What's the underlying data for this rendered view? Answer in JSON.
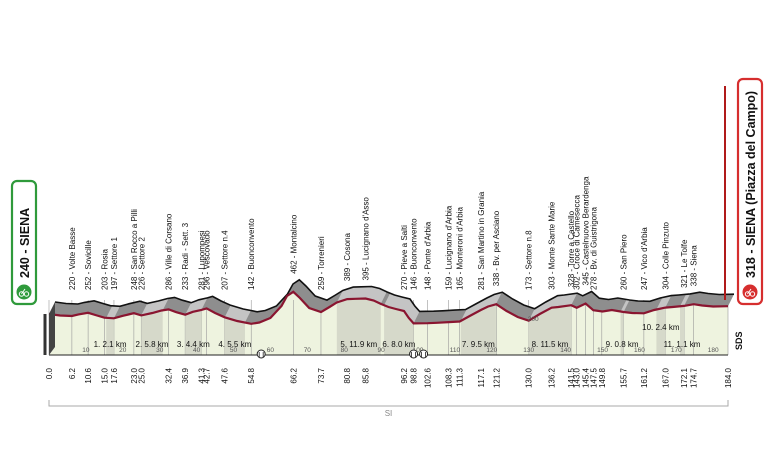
{
  "chart_data": {
    "type": "area",
    "start": {
      "label": "240 - SIENA",
      "elevation_m": 240
    },
    "finish": {
      "label": "318 - SIENA (Piazza del Campo)",
      "elevation_m": 318
    },
    "xlim": [
      0,
      184
    ],
    "x_ticks": [
      10,
      20,
      30,
      40,
      50,
      60,
      70,
      80,
      90,
      100,
      110,
      120,
      130,
      140,
      150,
      160,
      170,
      180
    ],
    "elevation_ref_labels": [
      "200"
    ],
    "distance_labels": [
      "0.0",
      "6.2",
      "10.6",
      "15.0",
      "17.6",
      "23.0",
      "25.0",
      "32.4",
      "36.9",
      "41.3",
      "42.7",
      "47.6",
      "54.8",
      "66.2",
      "73.7",
      "80.8",
      "85.8",
      "96.2",
      "98.8",
      "102.6",
      "108.3",
      "111.3",
      "117.1",
      "121.2",
      "130.0",
      "136.2",
      "141.5",
      "143.0",
      "145.4",
      "147.5",
      "149.8",
      "155.7",
      "161.2",
      "167.0",
      "172.1",
      "174.7",
      "184.0"
    ],
    "waypoints": [
      {
        "km": 6.2,
        "label": "220 - Volte Basse"
      },
      {
        "km": 10.6,
        "label": "252 - Sovicille"
      },
      {
        "km": 15.0,
        "label": "203 - Rosia"
      },
      {
        "km": 17.6,
        "label": "197 - Settore 1"
      },
      {
        "km": 23.0,
        "label": "248 - San Rocco a Pilli"
      },
      {
        "km": 25.0,
        "label": "226 - Settore 2"
      },
      {
        "km": 32.4,
        "label": "286 - Ville di Corsano"
      },
      {
        "km": 36.9,
        "label": "233 - Radi - Sett. 3"
      },
      {
        "km": 41.3,
        "label": "281 - Lupompesi"
      },
      {
        "km": 42.7,
        "label": "296 - Vescovado"
      },
      {
        "km": 47.6,
        "label": "207 - Settore n.4"
      },
      {
        "km": 54.8,
        "label": "142 - Buonconvento"
      },
      {
        "km": 66.2,
        "label": "462 - Montalcino"
      },
      {
        "km": 73.7,
        "label": "259 - Torrenieri"
      },
      {
        "km": 80.8,
        "label": "389 - Cosona"
      },
      {
        "km": 85.8,
        "label": "395 - Lucignano d'Asso"
      },
      {
        "km": 96.2,
        "label": "270 - Pieve a Salti"
      },
      {
        "km": 98.8,
        "label": "146 - Buonconvento"
      },
      {
        "km": 102.6,
        "label": "148 - Ponte d'Arbia"
      },
      {
        "km": 108.3,
        "label": "159 - Lucignano d'Arbia"
      },
      {
        "km": 111.3,
        "label": "165 - Monteroni d'Arbia"
      },
      {
        "km": 117.1,
        "label": "281 - San Martino in Grania"
      },
      {
        "km": 121.2,
        "label": "338 - Bv. per Asciano"
      },
      {
        "km": 130.0,
        "label": "173 - Settore n.8"
      },
      {
        "km": 136.2,
        "label": "303 - Monte Sante Marie"
      },
      {
        "km": 141.5,
        "label": "328 - Torre a Castello"
      },
      {
        "km": 143.0,
        "label": "302 - Croce di Camesecca"
      },
      {
        "km": 145.4,
        "label": "345 - Castelnuovo Berardenga"
      },
      {
        "km": 147.5,
        "label": "278 - Bv. di Guistrigona"
      },
      {
        "km": 155.7,
        "label": "260 - San Piero"
      },
      {
        "km": 161.2,
        "label": "247 - Vico d'Arbia"
      },
      {
        "km": 167.0,
        "label": "304 - Colle Pinzuto"
      },
      {
        "km": 172.1,
        "label": "321 - Le Tolfe"
      },
      {
        "km": 174.7,
        "label": "338 - Siena"
      }
    ],
    "sectors": [
      {
        "label": "1. 2.1 km",
        "from": 15.5,
        "to": 17.6
      },
      {
        "label": "2. 5.8 km",
        "from": 25.0,
        "to": 30.8
      },
      {
        "label": "3. 4.4 km",
        "from": 36.9,
        "to": 41.3
      },
      {
        "label": "4. 5.5 km",
        "from": 47.6,
        "to": 53.1
      },
      {
        "label": "5. 11.9 km",
        "from": 78.0,
        "to": 89.9
      },
      {
        "label": "6. 8.0 km",
        "from": 90.8,
        "to": 98.8
      },
      {
        "label": "7. 9.5 km",
        "from": 111.6,
        "to": 121.1
      },
      {
        "label": "8. 11.5 km",
        "from": 130.0,
        "to": 141.5
      },
      {
        "label": "9. 0.8 km",
        "from": 154.9,
        "to": 155.7
      },
      {
        "label": "10. 2.4 km",
        "from": 164.6,
        "to": 167.0
      },
      {
        "label": "11. 1.1 km",
        "from": 171.0,
        "to": 172.1
      }
    ],
    "profile": [
      [
        0,
        240
      ],
      [
        3,
        225
      ],
      [
        6.2,
        220
      ],
      [
        8,
        236
      ],
      [
        10.6,
        252
      ],
      [
        13,
        225
      ],
      [
        15,
        203
      ],
      [
        17.6,
        197
      ],
      [
        20,
        222
      ],
      [
        23,
        248
      ],
      [
        25,
        226
      ],
      [
        28,
        250
      ],
      [
        30.5,
        275
      ],
      [
        32.4,
        286
      ],
      [
        34.5,
        258
      ],
      [
        36.9,
        233
      ],
      [
        39,
        262
      ],
      [
        41.3,
        281
      ],
      [
        42.7,
        296
      ],
      [
        45,
        250
      ],
      [
        47.6,
        207
      ],
      [
        51,
        170
      ],
      [
        54.8,
        142
      ],
      [
        57,
        155
      ],
      [
        60,
        200
      ],
      [
        63,
        320
      ],
      [
        64.5,
        420
      ],
      [
        66.2,
        462
      ],
      [
        68,
        400
      ],
      [
        70.5,
        300
      ],
      [
        73.7,
        259
      ],
      [
        76,
        310
      ],
      [
        78,
        355
      ],
      [
        80.8,
        389
      ],
      [
        83,
        392
      ],
      [
        85.8,
        395
      ],
      [
        88,
        375
      ],
      [
        90,
        340
      ],
      [
        92,
        310
      ],
      [
        94,
        290
      ],
      [
        96.2,
        270
      ],
      [
        97.5,
        200
      ],
      [
        98.8,
        146
      ],
      [
        100.5,
        147
      ],
      [
        102.6,
        148
      ],
      [
        105,
        152
      ],
      [
        108.3,
        159
      ],
      [
        111.3,
        165
      ],
      [
        114,
        220
      ],
      [
        117.1,
        281
      ],
      [
        119,
        315
      ],
      [
        121.2,
        338
      ],
      [
        124,
        270
      ],
      [
        127,
        210
      ],
      [
        130,
        173
      ],
      [
        133,
        240
      ],
      [
        136.2,
        303
      ],
      [
        138,
        310
      ],
      [
        141.5,
        328
      ],
      [
        143,
        302
      ],
      [
        145.4,
        345
      ],
      [
        147.5,
        278
      ],
      [
        150,
        265
      ],
      [
        152.5,
        280
      ],
      [
        155.7,
        260
      ],
      [
        158,
        250
      ],
      [
        161.2,
        247
      ],
      [
        164,
        280
      ],
      [
        167,
        304
      ],
      [
        169,
        310
      ],
      [
        172.1,
        321
      ],
      [
        174.7,
        338
      ],
      [
        177,
        325
      ],
      [
        180,
        315
      ],
      [
        184,
        318
      ]
    ],
    "footer_label": "SI",
    "brand": "SDS"
  }
}
